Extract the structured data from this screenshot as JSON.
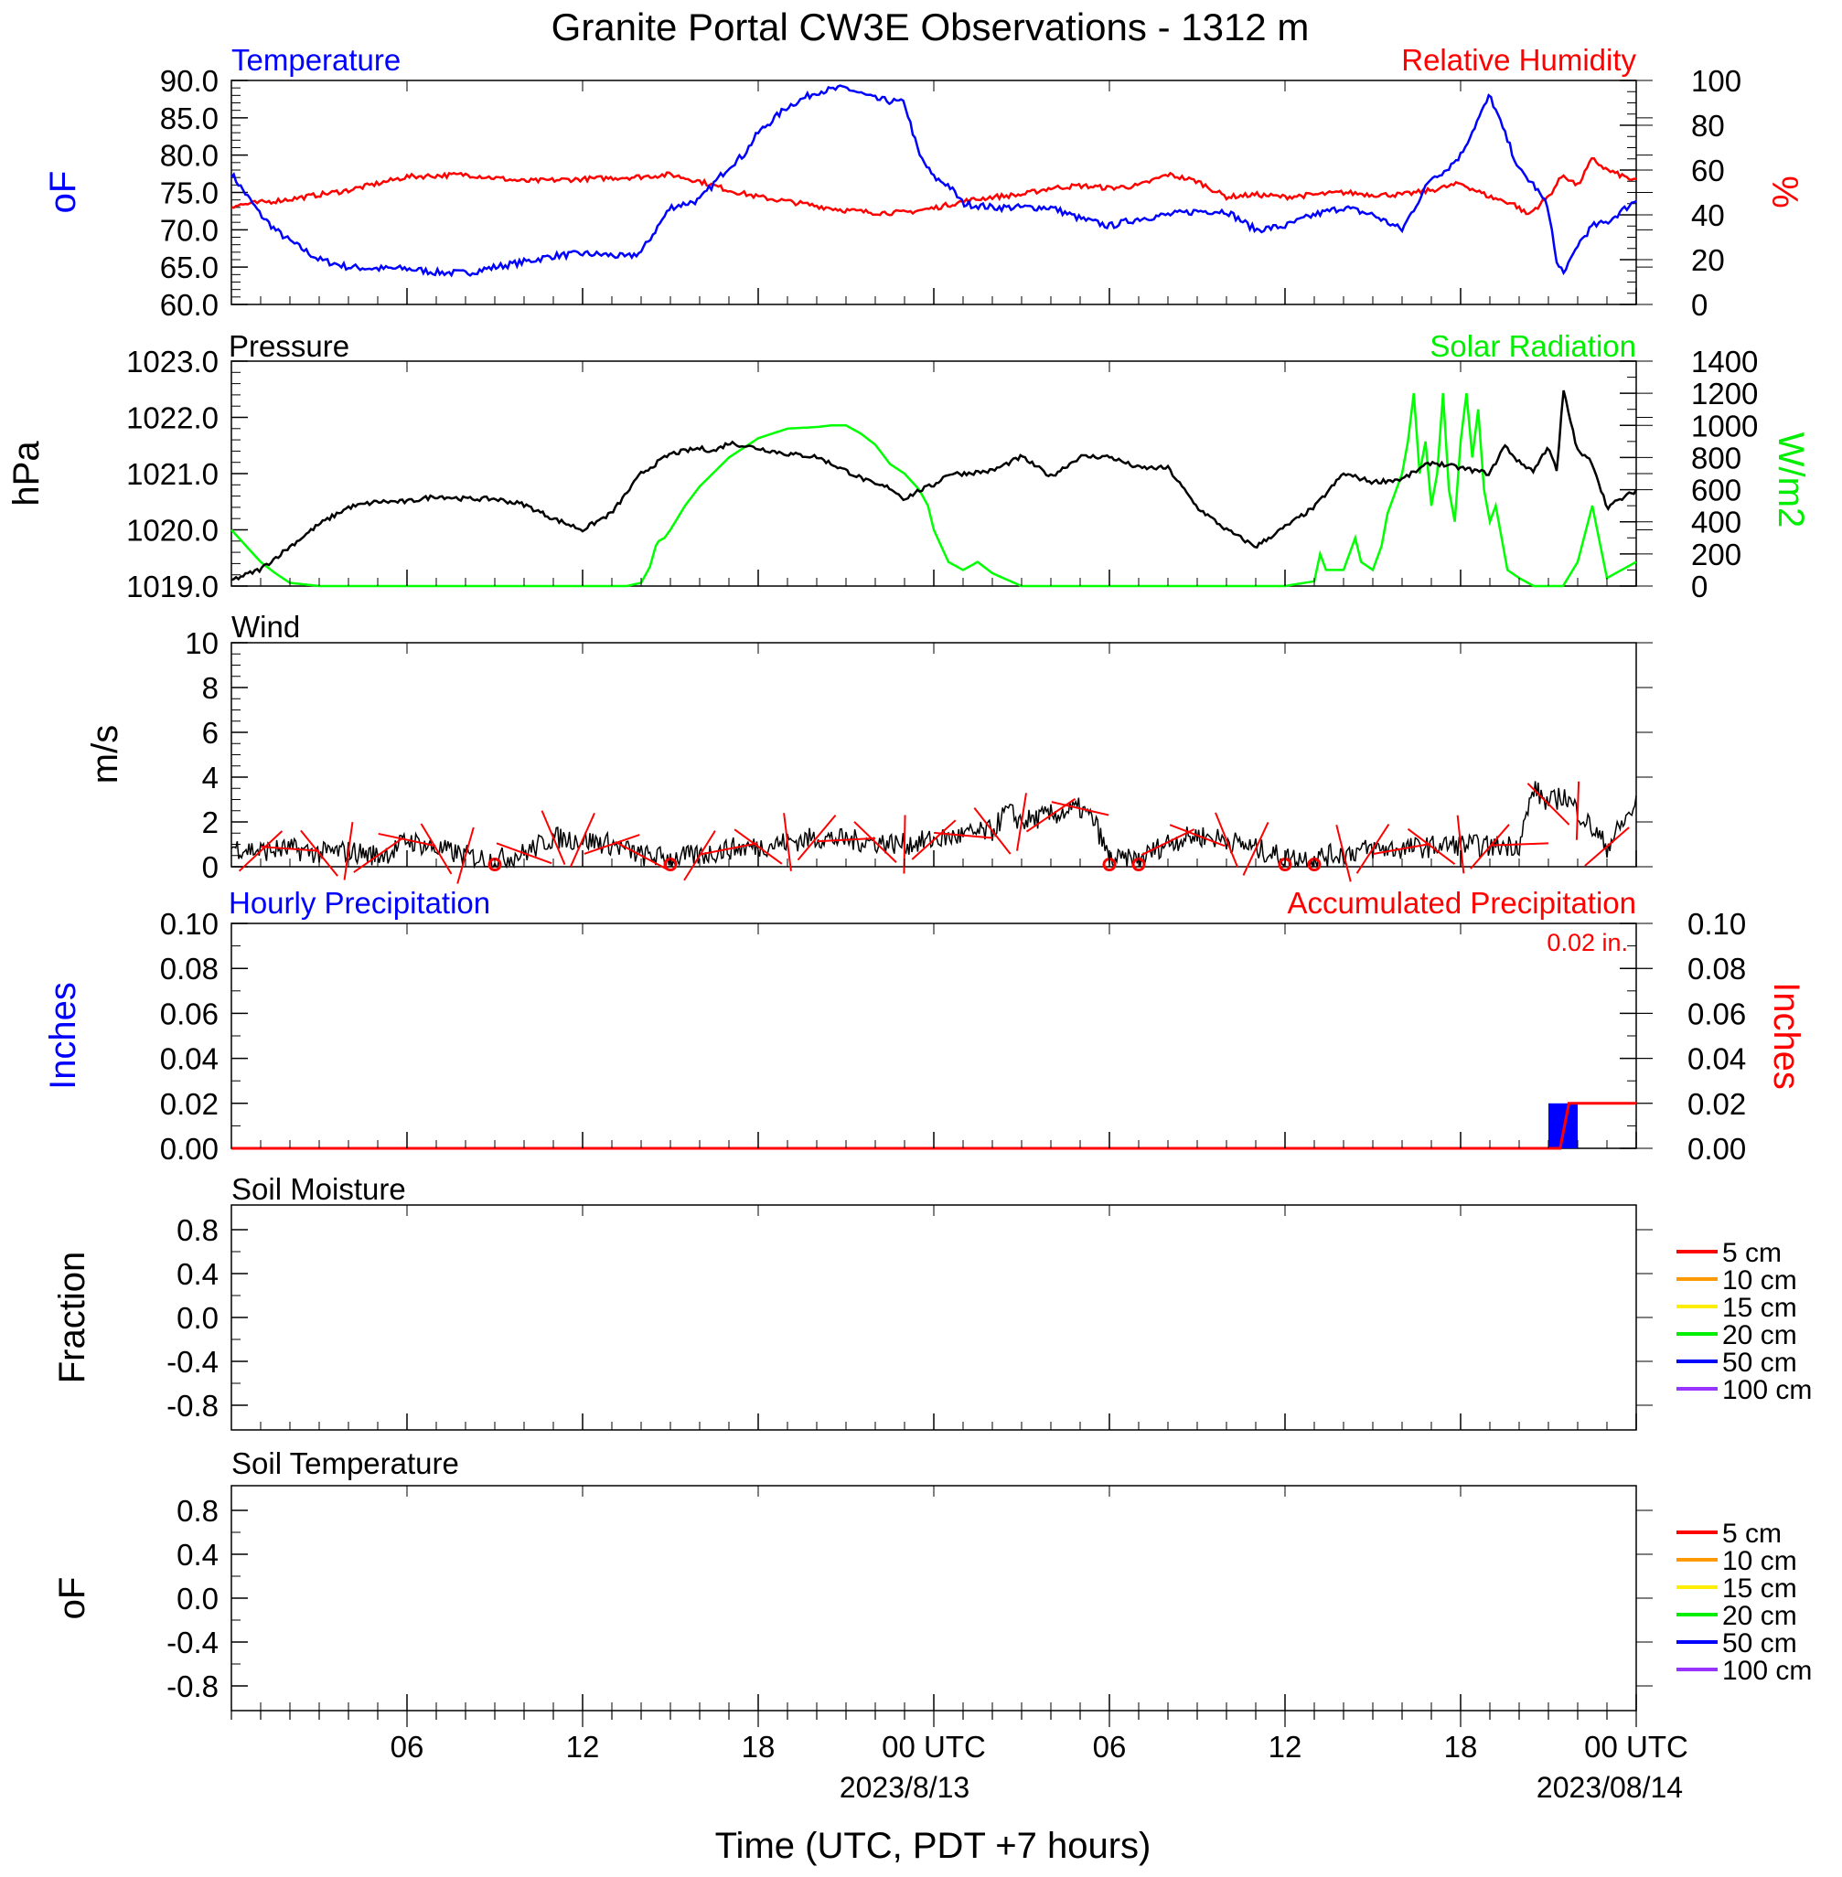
{
  "title": "Granite Portal CW3E Observations - 1312 m",
  "x_axis": {
    "label": "Time (UTC, PDT +7 hours)",
    "ticks": [
      "06",
      "12",
      "18",
      "00 UTC",
      "06",
      "12",
      "18",
      "00 UTC"
    ],
    "dates": [
      "2023/8/13",
      "2023/08/14"
    ]
  },
  "colors": {
    "temperature": "#0000ff",
    "humidity": "#ff0000",
    "pressure": "#000000",
    "solar": "#00ff00",
    "wind": "#000000",
    "barbs": "#ff0000",
    "precip_bar": "#0000ff",
    "precip_accum": "#ff0000"
  },
  "panels": {
    "temp_rh": {
      "left_title": "Temperature",
      "right_title": "Relative Humidity",
      "left_unit": "oF",
      "right_unit": "%",
      "left_ticks": [
        "90.0",
        "85.0",
        "80.0",
        "75.0",
        "70.0",
        "65.0",
        "60.0"
      ],
      "right_ticks": [
        "100",
        "80",
        "60",
        "40",
        "20",
        "0"
      ]
    },
    "pressure_solar": {
      "left_title": "Pressure",
      "right_title": "Solar Radiation",
      "left_unit": "hPa",
      "right_unit": "W/m2",
      "left_ticks": [
        "1023.0",
        "1022.0",
        "1021.0",
        "1020.0",
        "1019.0"
      ],
      "right_ticks": [
        "1400",
        "1200",
        "1000",
        "800",
        "600",
        "400",
        "200",
        "0"
      ]
    },
    "wind": {
      "title": "Wind",
      "unit": "m/s",
      "ticks": [
        "10",
        "8",
        "6",
        "4",
        "2",
        "0"
      ]
    },
    "precip": {
      "left_title": "Hourly Precipitation",
      "right_title": "Accumulated Precipitation",
      "total": "0.02 in.",
      "left_unit": "Inches",
      "right_unit": "Inches",
      "left_ticks": [
        "0.10",
        "0.08",
        "0.06",
        "0.04",
        "0.02",
        "0.00"
      ],
      "right_ticks": [
        "0.10",
        "0.08",
        "0.06",
        "0.04",
        "0.02",
        "0.00"
      ]
    },
    "soil_moisture": {
      "title": "Soil Moisture",
      "unit": "Fraction",
      "ticks": [
        "0.8",
        "0.4",
        "0.0",
        "-0.4",
        "-0.8"
      ],
      "legend": [
        "5 cm",
        "10 cm",
        "15 cm",
        "20 cm",
        "50 cm",
        "100 cm"
      ]
    },
    "soil_temp": {
      "title": "Soil Temperature",
      "unit": "oF",
      "ticks": [
        "0.8",
        "0.4",
        "0.0",
        "-0.4",
        "-0.8"
      ],
      "legend": [
        "5 cm",
        "10 cm",
        "15 cm",
        "20 cm",
        "50 cm",
        "100 cm"
      ]
    }
  },
  "legend_colors": [
    "#ff0000",
    "#ff9900",
    "#ffee00",
    "#00ee00",
    "#0000ff",
    "#9933ff"
  ],
  "chart_data": [
    {
      "type": "line",
      "title": "Temperature",
      "x_unit": "hours since 2023-08-12 00 UTC",
      "xlim": [
        0,
        48
      ],
      "ylim": [
        60,
        90
      ],
      "ylabel": "oF",
      "x": [
        0,
        1,
        1.5,
        2,
        3,
        4,
        5,
        6,
        7,
        8,
        9,
        10,
        11,
        12,
        13,
        13.5,
        14,
        15,
        16,
        17,
        17.5,
        18,
        19,
        20,
        21,
        22,
        23,
        23.5,
        24,
        24.5,
        25,
        26,
        27,
        28,
        29,
        30,
        31,
        32,
        33,
        34,
        35,
        36,
        37,
        38,
        39,
        40,
        41,
        41.5,
        42,
        43,
        44,
        44.5,
        45,
        45.3,
        45.6,
        46,
        46.5,
        47,
        48
      ],
      "values": [
        77.5,
        72,
        70,
        68.5,
        66,
        65,
        64.8,
        64.8,
        64.3,
        64.2,
        65,
        65.7,
        66.5,
        66.8,
        66.6,
        66.3,
        67,
        73,
        74,
        78.5,
        80,
        83,
        86.5,
        88.5,
        89,
        87.5,
        87,
        80,
        77,
        76,
        73.5,
        73,
        73,
        73,
        71.5,
        70.5,
        71.5,
        72,
        72.5,
        72.5,
        70,
        70.5,
        72,
        73,
        72,
        70,
        77,
        78,
        80,
        88,
        78,
        76,
        73,
        65,
        64.5,
        68,
        70.5,
        71,
        74
      ]
    },
    {
      "type": "line",
      "title": "Relative Humidity",
      "x_unit": "hours since 2023-08-12 00 UTC",
      "xlim": [
        0,
        48
      ],
      "ylim": [
        0,
        100
      ],
      "ylabel": "%",
      "x": [
        0,
        2,
        4,
        6,
        8,
        10,
        12,
        14,
        15,
        16,
        17,
        18,
        19,
        20,
        21,
        22,
        23,
        24,
        25,
        26,
        27,
        28,
        29,
        30,
        31,
        32,
        33,
        34,
        35,
        36,
        37,
        38,
        39,
        40,
        41,
        42,
        43,
        43.8,
        44.3,
        45,
        45.5,
        46,
        46.5,
        47,
        48
      ],
      "values": [
        44,
        47,
        51,
        57,
        58,
        55,
        56,
        57,
        58,
        55,
        51,
        48,
        46,
        44,
        42,
        41,
        41,
        43,
        46,
        48,
        49,
        52,
        53,
        52,
        53,
        58,
        55,
        48,
        49,
        48,
        49,
        50,
        49,
        49,
        51,
        54,
        48,
        45,
        40,
        48,
        58,
        53,
        65,
        60,
        55
      ]
    },
    {
      "type": "line",
      "title": "Pressure",
      "x_unit": "hours since 2023-08-12 00 UTC",
      "xlim": [
        0,
        48
      ],
      "ylim": [
        1019,
        1023
      ],
      "ylabel": "hPa",
      "x": [
        0,
        1,
        2,
        3,
        4,
        5,
        6,
        7,
        8,
        9,
        10,
        11,
        12,
        13,
        14,
        15,
        16,
        16.5,
        17,
        18,
        19,
        20,
        21,
        22,
        22.5,
        23,
        23.5,
        24,
        24.5,
        25,
        26,
        27,
        28,
        29,
        30,
        31,
        32,
        33,
        34,
        35,
        36,
        37,
        38,
        39,
        40,
        41,
        42,
        43,
        43.5,
        44,
        44.5,
        45,
        45.3,
        45.5,
        46,
        46.5,
        47,
        48
      ],
      "values": [
        1019.1,
        1019.3,
        1019.7,
        1020.1,
        1020.4,
        1020.5,
        1020.5,
        1020.6,
        1020.55,
        1020.55,
        1020.45,
        1020.2,
        1020.0,
        1020.3,
        1021.0,
        1021.35,
        1021.45,
        1021.4,
        1021.55,
        1021.45,
        1021.35,
        1021.3,
        1021.05,
        1020.8,
        1020.75,
        1020.55,
        1020.7,
        1020.8,
        1021.0,
        1021.0,
        1021.05,
        1021.3,
        1020.95,
        1021.3,
        1021.3,
        1021.1,
        1021.1,
        1020.4,
        1020.0,
        1019.7,
        1020.05,
        1020.4,
        1021.0,
        1020.85,
        1020.9,
        1021.2,
        1021.1,
        1021.0,
        1021.5,
        1021.2,
        1021.05,
        1021.5,
        1021.0,
        1022.5,
        1021.4,
        1021.2,
        1020.4,
        1020.7
      ]
    },
    {
      "type": "line",
      "title": "Solar Radiation",
      "x_unit": "hours since 2023-08-12 00 UTC",
      "xlim": [
        0,
        48
      ],
      "ylim": [
        0,
        1400
      ],
      "ylabel": "W/m2",
      "x": [
        0,
        0.5,
        1,
        1.5,
        2,
        3,
        12,
        13,
        13.5,
        14,
        14.3,
        14.5,
        14.6,
        14.8,
        15,
        15.5,
        16,
        17,
        18,
        19,
        20,
        20.5,
        21,
        21.5,
        22,
        22.5,
        23,
        23.5,
        23.8,
        24,
        24.5,
        25,
        25.5,
        26,
        27,
        34,
        35,
        36,
        37,
        37.2,
        37.4,
        38,
        38.2,
        38.4,
        38.6,
        39,
        39.3,
        39.5,
        40,
        40.2,
        40.4,
        40.6,
        40.8,
        41,
        41.2,
        41.4,
        41.6,
        41.8,
        42,
        42.2,
        42.4,
        42.6,
        42.8,
        43,
        43.2,
        43.4,
        43.6,
        44,
        44.5,
        45,
        45.5,
        46,
        46.5,
        47,
        47.5,
        48
      ],
      "values": [
        350,
        250,
        150,
        80,
        20,
        0,
        0,
        0,
        0,
        20,
        120,
        250,
        280,
        300,
        350,
        500,
        620,
        800,
        920,
        980,
        990,
        1000,
        1000,
        950,
        880,
        760,
        700,
        600,
        500,
        350,
        150,
        100,
        150,
        80,
        0,
        0,
        0,
        0,
        30,
        200,
        100,
        100,
        200,
        300,
        150,
        100,
        250,
        450,
        700,
        900,
        1200,
        700,
        900,
        500,
        700,
        1200,
        600,
        400,
        900,
        1200,
        800,
        1100,
        600,
        400,
        500,
        300,
        100,
        50,
        0,
        0,
        0,
        150,
        500,
        50,
        100,
        150
      ]
    },
    {
      "type": "line",
      "title": "Wind",
      "x_unit": "hours since 2023-08-12 00 UTC",
      "xlim": [
        0,
        48
      ],
      "ylim": [
        0,
        10
      ],
      "ylabel": "m/s",
      "x": [
        0,
        1,
        2,
        3,
        4,
        5,
        5.5,
        6,
        7,
        8,
        9,
        10,
        11,
        12,
        13,
        14,
        15,
        16,
        17,
        18,
        19,
        20,
        21,
        22,
        23,
        24,
        25,
        26,
        26.5,
        27,
        28,
        29,
        29.5,
        30,
        31,
        32,
        33,
        34,
        35,
        36,
        37,
        38,
        39,
        40,
        41,
        42,
        43,
        44,
        44.5,
        45,
        45.5,
        46,
        47,
        48
      ],
      "values": [
        0.9,
        0.7,
        0.8,
        0.6,
        0.7,
        0.5,
        0.7,
        1.2,
        0.8,
        0.5,
        0.3,
        0.6,
        1.3,
        1.2,
        1.0,
        0.5,
        0.4,
        0.5,
        0.8,
        0.9,
        1.1,
        1.3,
        1.2,
        1.1,
        1.0,
        1.2,
        1.4,
        1.6,
        2.5,
        2.0,
        2.3,
        2.6,
        2.0,
        0.3,
        0.3,
        1.1,
        1.4,
        1.2,
        0.8,
        0.4,
        0.4,
        0.6,
        0.8,
        0.8,
        0.9,
        1.0,
        0.9,
        1.0,
        3.5,
        2.8,
        3.2,
        2.5,
        0.9,
        2.8
      ]
    },
    {
      "type": "bar",
      "title": "Hourly Precipitation",
      "x_unit": "hours since 2023-08-12 00 UTC",
      "xlim": [
        0,
        48
      ],
      "ylim": [
        0,
        0.1
      ],
      "ylabel": "Inches",
      "x": [
        45.5
      ],
      "values": [
        0.02
      ]
    },
    {
      "type": "line",
      "title": "Accumulated Precipitation",
      "x_unit": "hours since 2023-08-12 00 UTC",
      "xlim": [
        0,
        48
      ],
      "ylim": [
        0,
        0.1
      ],
      "ylabel": "Inches",
      "x": [
        0,
        45.4,
        45.7,
        48
      ],
      "values": [
        0,
        0,
        0.02,
        0.02
      ]
    }
  ]
}
